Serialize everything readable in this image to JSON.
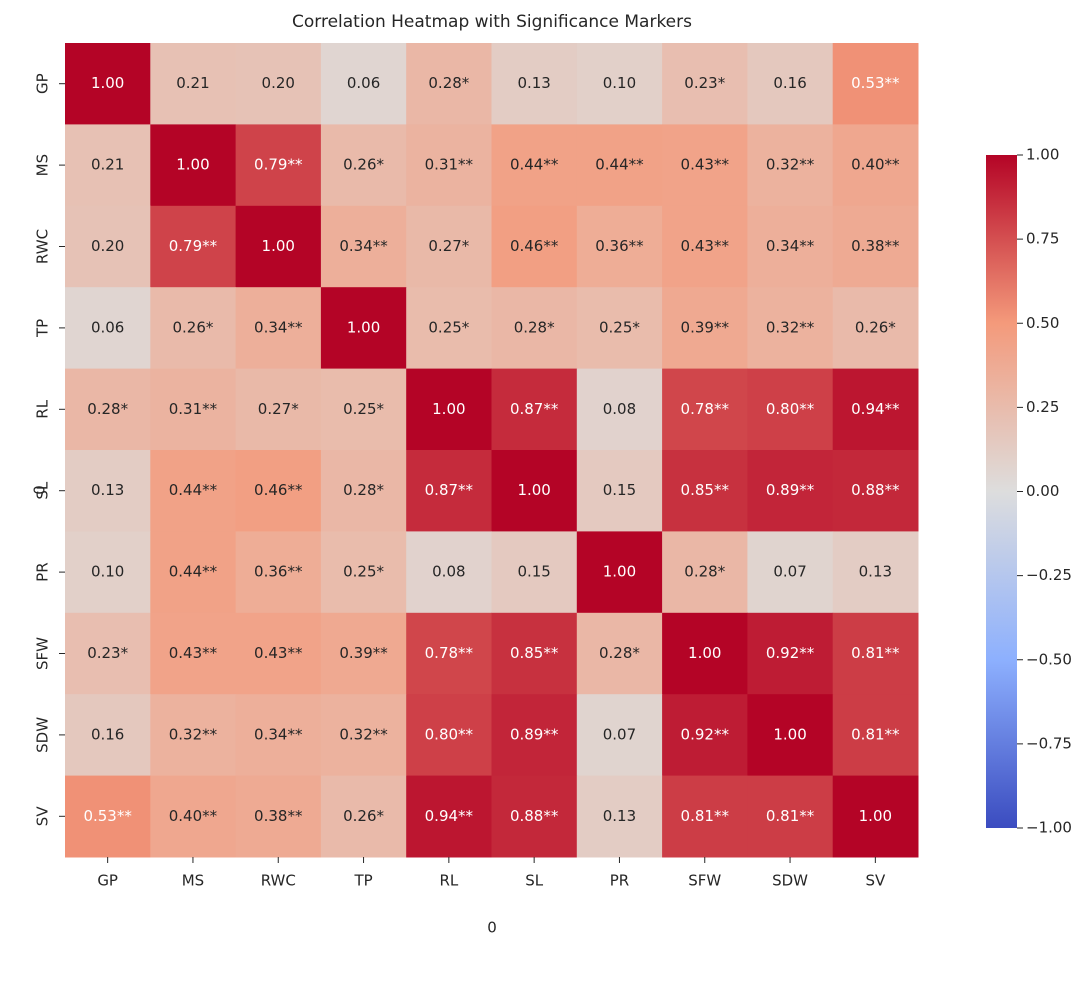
{
  "chart_data": {
    "type": "heatmap",
    "title": "Correlation Heatmap with Significance Markers",
    "xlabel": "0",
    "ylabel": "0",
    "x_categories": [
      "GP",
      "MS",
      "RWC",
      "TP",
      "RL",
      "SL",
      "PR",
      "SFW",
      "SDW",
      "SV"
    ],
    "y_categories": [
      "GP",
      "MS",
      "RWC",
      "TP",
      "RL",
      "SL",
      "PR",
      "SFW",
      "SDW",
      "SV"
    ],
    "values": [
      [
        1.0,
        0.21,
        0.2,
        0.06,
        0.28,
        0.13,
        0.1,
        0.23,
        0.16,
        0.53
      ],
      [
        0.21,
        1.0,
        0.79,
        0.26,
        0.31,
        0.44,
        0.44,
        0.43,
        0.32,
        0.4
      ],
      [
        0.2,
        0.79,
        1.0,
        0.34,
        0.27,
        0.46,
        0.36,
        0.43,
        0.34,
        0.38
      ],
      [
        0.06,
        0.26,
        0.34,
        1.0,
        0.25,
        0.28,
        0.25,
        0.39,
        0.32,
        0.26
      ],
      [
        0.28,
        0.31,
        0.27,
        0.25,
        1.0,
        0.87,
        0.08,
        0.78,
        0.8,
        0.94
      ],
      [
        0.13,
        0.44,
        0.46,
        0.28,
        0.87,
        1.0,
        0.15,
        0.85,
        0.89,
        0.88
      ],
      [
        0.1,
        0.44,
        0.36,
        0.25,
        0.08,
        0.15,
        1.0,
        0.28,
        0.07,
        0.13
      ],
      [
        0.23,
        0.43,
        0.43,
        0.39,
        0.78,
        0.85,
        0.28,
        1.0,
        0.92,
        0.81
      ],
      [
        0.16,
        0.32,
        0.34,
        0.32,
        0.8,
        0.89,
        0.07,
        0.92,
        1.0,
        0.81
      ],
      [
        0.53,
        0.4,
        0.38,
        0.26,
        0.94,
        0.88,
        0.13,
        0.81,
        0.81,
        1.0
      ]
    ],
    "value_labels": [
      [
        "1.00",
        "0.21",
        "0.20",
        "0.06",
        "0.28*",
        "0.13",
        "0.10",
        "0.23*",
        "0.16",
        "0.53**"
      ],
      [
        "0.21",
        "1.00",
        "0.79**",
        "0.26*",
        "0.31**",
        "0.44**",
        "0.44**",
        "0.43**",
        "0.32**",
        "0.40**"
      ],
      [
        "0.20",
        "0.79**",
        "1.00",
        "0.34**",
        "0.27*",
        "0.46**",
        "0.36**",
        "0.43**",
        "0.34**",
        "0.38**"
      ],
      [
        "0.06",
        "0.26*",
        "0.34**",
        "1.00",
        "0.25*",
        "0.28*",
        "0.25*",
        "0.39**",
        "0.32**",
        "0.26*"
      ],
      [
        "0.28*",
        "0.31**",
        "0.27*",
        "0.25*",
        "1.00",
        "0.87**",
        "0.08",
        "0.78**",
        "0.80**",
        "0.94**"
      ],
      [
        "0.13",
        "0.44**",
        "0.46**",
        "0.28*",
        "0.87**",
        "1.00",
        "0.15",
        "0.85**",
        "0.89**",
        "0.88**"
      ],
      [
        "0.10",
        "0.44**",
        "0.36**",
        "0.25*",
        "0.08",
        "0.15",
        "1.00",
        "0.28*",
        "0.07",
        "0.13"
      ],
      [
        "0.23*",
        "0.43**",
        "0.43**",
        "0.39**",
        "0.78**",
        "0.85**",
        "0.28*",
        "1.00",
        "0.92**",
        "0.81**"
      ],
      [
        "0.16",
        "0.32**",
        "0.34**",
        "0.32**",
        "0.80**",
        "0.89**",
        "0.07",
        "0.92**",
        "1.00",
        "0.81**"
      ],
      [
        "0.53**",
        "0.40**",
        "0.38**",
        "0.26*",
        "0.94**",
        "0.88**",
        "0.13",
        "0.81**",
        "0.81**",
        "1.00"
      ]
    ],
    "colormap": "coolwarm",
    "zlim": [
      -1,
      1
    ],
    "colorbar_ticks": [
      {
        "value": -1,
        "label": "−1.00"
      },
      {
        "value": -0.75,
        "label": "−0.75"
      },
      {
        "value": -0.5,
        "label": "−0.50"
      },
      {
        "value": -0.25,
        "label": "−0.25"
      },
      {
        "value": 0,
        "label": "0.00"
      },
      {
        "value": 0.25,
        "label": "0.25"
      },
      {
        "value": 0.5,
        "label": "0.50"
      },
      {
        "value": 0.75,
        "label": "0.75"
      },
      {
        "value": 1,
        "label": "1.00"
      }
    ]
  }
}
